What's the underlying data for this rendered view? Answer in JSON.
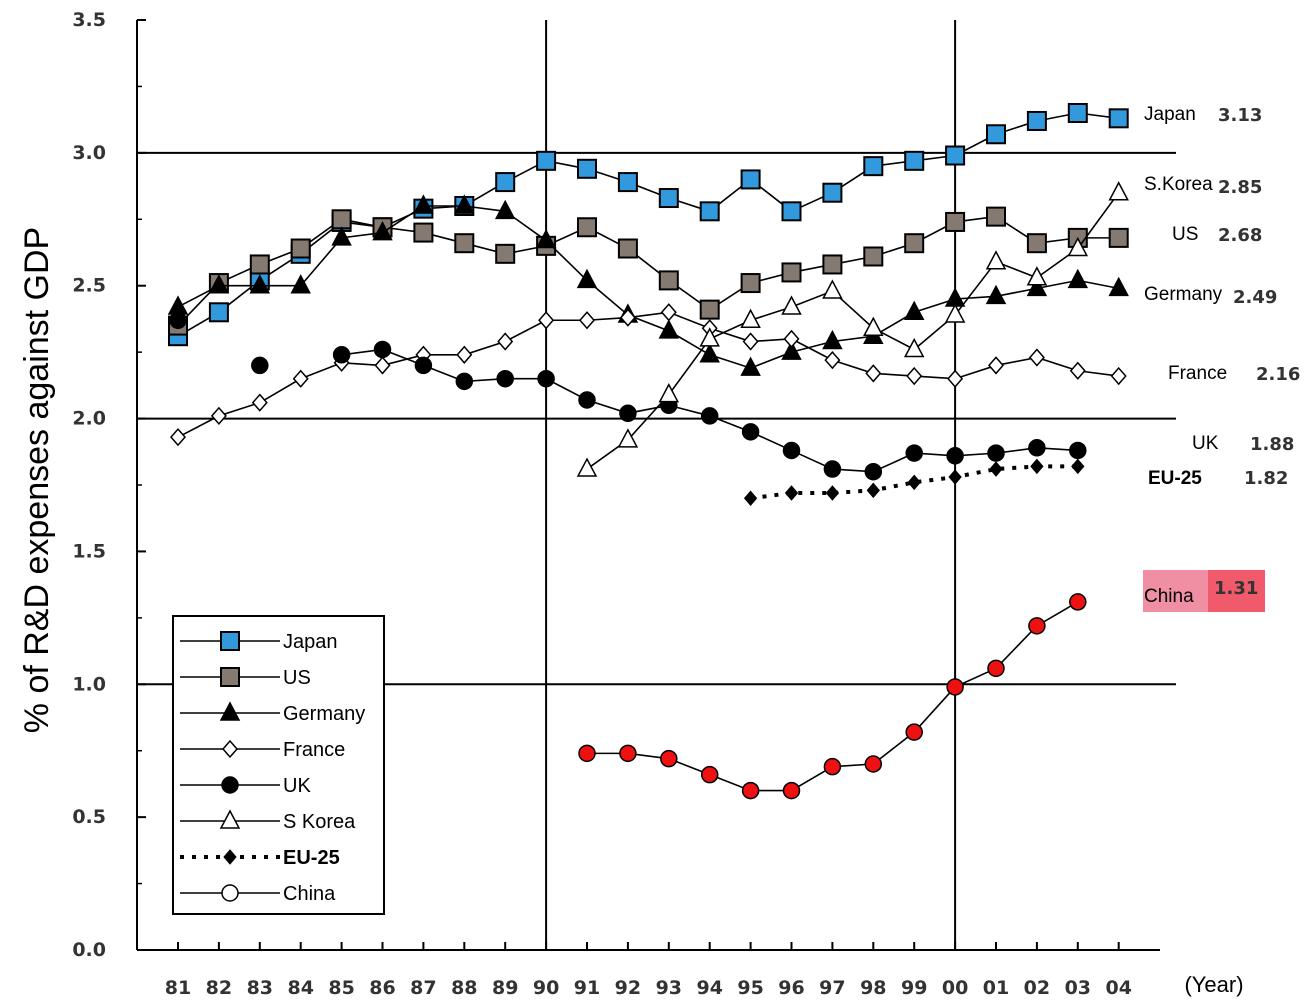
{
  "chart_data": {
    "type": "line",
    "ylabel": "% of R&D expenses against GDP",
    "xlabel": "(Year)",
    "ylim": [
      0.0,
      3.5
    ],
    "yticks": [
      "0.0",
      "0.5",
      "1.0",
      "1.5",
      "2.0",
      "2.5",
      "3.0",
      "3.5"
    ],
    "categories": [
      "81",
      "82",
      "83",
      "84",
      "85",
      "86",
      "87",
      "88",
      "89",
      "90",
      "91",
      "92",
      "93",
      "94",
      "95",
      "96",
      "97",
      "98",
      "99",
      "00",
      "01",
      "02",
      "03",
      "04"
    ],
    "grid_y": [
      1.0,
      2.0,
      3.0
    ],
    "grid_x": [
      "90",
      "00"
    ],
    "legend_position": "bottom-left",
    "series": [
      {
        "name": "Japan",
        "marker": "square",
        "color": "#3399dd",
        "dashed": false,
        "values": [
          2.31,
          2.4,
          2.52,
          2.62,
          2.74,
          2.72,
          2.79,
          2.8,
          2.89,
          2.97,
          2.94,
          2.89,
          2.83,
          2.78,
          2.9,
          2.78,
          2.85,
          2.95,
          2.97,
          2.99,
          3.07,
          3.12,
          3.15,
          3.13
        ],
        "end_label": "Japan",
        "end_value": "3.13"
      },
      {
        "name": "US",
        "marker": "square",
        "color": "#857a72",
        "dashed": false,
        "values": [
          2.35,
          2.51,
          2.58,
          2.64,
          2.75,
          2.72,
          2.7,
          2.66,
          2.62,
          2.65,
          2.72,
          2.64,
          2.52,
          2.41,
          2.51,
          2.55,
          2.58,
          2.61,
          2.66,
          2.74,
          2.76,
          2.66,
          2.68,
          2.68
        ],
        "end_label": "US",
        "end_value": "2.68"
      },
      {
        "name": "Germany",
        "marker": "triangle",
        "color": "#000000",
        "dashed": false,
        "values": [
          2.42,
          2.5,
          2.5,
          2.5,
          2.68,
          2.7,
          2.8,
          2.8,
          2.78,
          2.67,
          2.52,
          2.39,
          2.33,
          2.24,
          2.19,
          2.25,
          2.29,
          2.31,
          2.4,
          2.45,
          2.46,
          2.49,
          2.52,
          2.49
        ],
        "end_label": "Germany",
        "end_value": "2.49"
      },
      {
        "name": "France",
        "marker": "diamond",
        "color": "#ffffff",
        "dashed": false,
        "values": [
          1.93,
          2.01,
          2.06,
          2.15,
          2.21,
          2.2,
          2.24,
          2.24,
          2.29,
          2.37,
          2.37,
          2.38,
          2.4,
          2.34,
          2.29,
          2.3,
          2.22,
          2.17,
          2.16,
          2.15,
          2.2,
          2.23,
          2.18,
          2.16
        ],
        "end_label": "France",
        "end_value": "2.16"
      },
      {
        "name": "UK",
        "marker": "circle",
        "color": "#000000",
        "dashed": false,
        "values": [
          2.37,
          null,
          2.2,
          null,
          2.24,
          2.26,
          2.2,
          2.14,
          2.15,
          2.15,
          2.07,
          2.02,
          2.05,
          2.01,
          1.95,
          1.88,
          1.81,
          1.8,
          1.87,
          1.86,
          1.87,
          1.89,
          1.88,
          null
        ],
        "end_label": "UK",
        "end_value": "1.88"
      },
      {
        "name": "S Korea",
        "marker": "triangle-open",
        "color": "#ffffff",
        "dashed": false,
        "values": [
          null,
          null,
          null,
          null,
          null,
          null,
          null,
          null,
          null,
          null,
          1.81,
          1.92,
          2.09,
          2.3,
          2.37,
          2.42,
          2.48,
          2.34,
          2.26,
          2.39,
          2.59,
          2.53,
          2.64,
          2.85
        ],
        "end_label": "S.Korea",
        "end_value": "2.85"
      },
      {
        "name": "EU-25",
        "marker": "small-diamond",
        "color": "#000000",
        "dashed": true,
        "values": [
          null,
          null,
          null,
          null,
          null,
          null,
          null,
          null,
          null,
          null,
          null,
          null,
          null,
          null,
          1.7,
          1.72,
          1.72,
          1.73,
          1.76,
          1.78,
          1.81,
          1.82,
          1.82,
          null
        ],
        "end_label": "EU-25",
        "end_value": "1.82"
      },
      {
        "name": "China",
        "marker": "circle-open",
        "color": "#ee1111",
        "dashed": false,
        "values": [
          null,
          null,
          null,
          null,
          null,
          null,
          null,
          null,
          null,
          null,
          0.74,
          0.74,
          0.72,
          0.66,
          0.6,
          0.6,
          0.69,
          0.7,
          0.82,
          0.99,
          1.06,
          1.22,
          1.31,
          null
        ],
        "end_label": "China",
        "end_value": "1.31"
      }
    ]
  }
}
